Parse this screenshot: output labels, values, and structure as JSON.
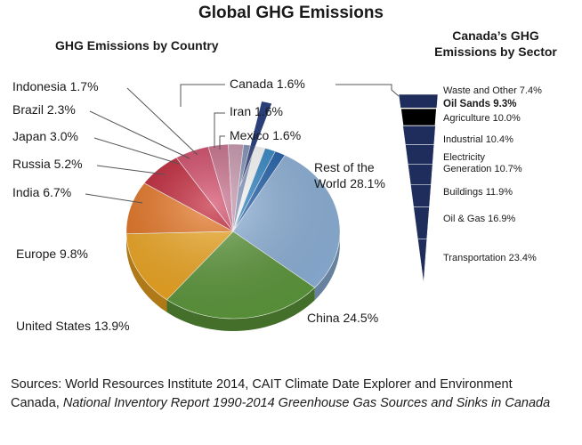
{
  "title": "Global GHG Emissions",
  "chart_data": [
    {
      "type": "pie",
      "title": "GHG Emissions by Country",
      "unit": "%",
      "labels": [
        "Rest of the World",
        "China",
        "United States",
        "Europe",
        "India",
        "Russia",
        "Japan",
        "Brazil",
        "Indonesia",
        "Canada",
        "Iran",
        "Mexico"
      ],
      "label_lines": [
        [
          "Rest of the",
          "World 28.1%"
        ],
        [
          "China 24.5%"
        ],
        [
          "United States 13.9%"
        ],
        [
          "Europe 9.8%"
        ],
        [
          "India 6.7%"
        ],
        [
          "Russia 5.2%"
        ],
        [
          "Japan 3.0%"
        ],
        [
          "Brazil 2.3%"
        ],
        [
          "Indonesia 1.7%"
        ],
        [
          "Canada 1.6%"
        ],
        [
          "Iran 1.6%"
        ],
        [
          "Mexico 1.6%"
        ]
      ],
      "values": [
        28.1,
        24.5,
        13.9,
        9.8,
        6.7,
        5.2,
        3.0,
        2.3,
        1.7,
        1.6,
        1.6,
        1.6
      ],
      "colors": [
        "#8fb4dc",
        "#5e9a3c",
        "#f2a81e",
        "#e8721c",
        "#c0182d",
        "#d14060",
        "#c86a88",
        "#c995ad",
        "#7e8fb8",
        "#2a3f78",
        "#2e86c8",
        "#1d5eab"
      ],
      "exploded": "Canada"
    },
    {
      "type": "funnel",
      "title": "Canada’s GHG Emissions by Sector",
      "title_lines": [
        "Canada’s GHG",
        "Emissions by Sector"
      ],
      "unit": "%",
      "labels": [
        "Waste and Other",
        "Oil Sands",
        "Agriculture",
        "Industrial",
        "Electricity Generation",
        "Buildings",
        "Oil & Gas",
        "Transportation"
      ],
      "label_lines": [
        [
          "Waste and Other 7.4%"
        ],
        [
          "Oil Sands 9.3%"
        ],
        [
          "Agriculture 10.0%"
        ],
        [
          "Industrial 10.4%"
        ],
        [
          "Electricity",
          "Generation 10.7%"
        ],
        [
          "Buildings 11.9%"
        ],
        [
          "Oil & Gas 16.9%"
        ],
        [
          "Transportation 23.4%"
        ]
      ],
      "values": [
        7.4,
        9.3,
        10.0,
        10.4,
        10.7,
        11.9,
        16.9,
        23.4
      ],
      "highlight": "Oil Sands",
      "color": "#1f2d5c",
      "highlight_color": "#000000"
    }
  ],
  "sources": {
    "prefix": "Sources: World Resources Institute 2014, CAIT Climate Date Explorer and Environment Canada, ",
    "italic": "National Inventory Report 1990-2014 Greenhouse Gas Sources and Sinks in Canada"
  }
}
